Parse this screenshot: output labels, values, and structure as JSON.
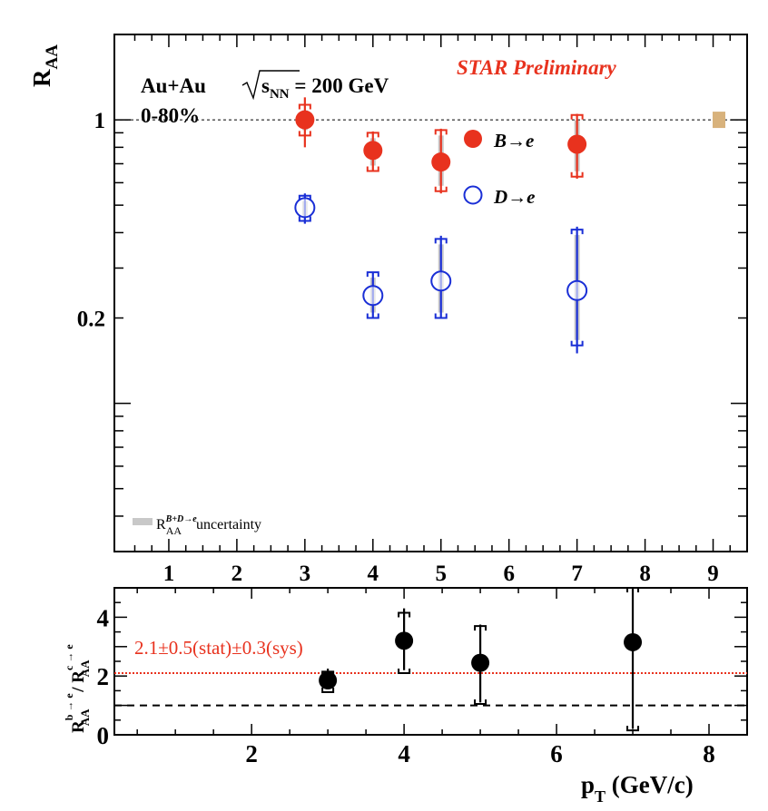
{
  "chart_data": [
    {
      "type": "scatter",
      "title": "",
      "ylabel_main": "R",
      "ylabel_sub": "AA",
      "xlim": [
        0.2,
        9.5
      ],
      "ylim": [
        0.03,
        2.0
      ],
      "y_scale": "log",
      "x_tick_labels": [
        "1",
        "2",
        "3",
        "4",
        "5",
        "6",
        "7",
        "8",
        "9"
      ],
      "y_tick_labels": [
        "1",
        "0.2"
      ],
      "reference_line": 1,
      "annotations": {
        "system": "Au+Au",
        "sqrt_s": "s",
        "sqrt_s_sub": "NN",
        "energy": " = 200 GeV",
        "centrality": "0-80%",
        "preliminary": "STAR Preliminary",
        "uncertainty_main": "R",
        "uncertainty_sub": "AA",
        "uncertainty_sup": "B+D→e",
        "uncertainty_text": " uncertainty"
      },
      "legend_placement": "top-center",
      "series": [
        {
          "name": "B→e",
          "marker": "filled-circle",
          "color": "#e8321e",
          "points": [
            {
              "x": 3.0,
              "y": 1.0,
              "stat_lo": 0.8,
              "stat_hi": 1.2,
              "sys_lo": 0.88,
              "sys_hi": 1.13
            },
            {
              "x": 4.0,
              "y": 0.78,
              "stat_lo": 0.66,
              "stat_hi": 0.91,
              "sys_lo": 0.66,
              "sys_hi": 0.9
            },
            {
              "x": 5.0,
              "y": 0.71,
              "stat_lo": 0.55,
              "stat_hi": 0.93,
              "sys_lo": 0.56,
              "sys_hi": 0.92
            },
            {
              "x": 7.0,
              "y": 0.82,
              "stat_lo": 0.62,
              "stat_hi": 1.05,
              "sys_lo": 0.63,
              "sys_hi": 1.04
            }
          ]
        },
        {
          "name": "D→e",
          "marker": "open-circle",
          "color": "#1a2fd6",
          "points": [
            {
              "x": 3.0,
              "y": 0.49,
              "stat_lo": 0.43,
              "stat_hi": 0.55,
              "sys_lo": 0.44,
              "sys_hi": 0.54
            },
            {
              "x": 4.0,
              "y": 0.24,
              "stat_lo": 0.2,
              "stat_hi": 0.29,
              "sys_lo": 0.2,
              "sys_hi": 0.29
            },
            {
              "x": 5.0,
              "y": 0.27,
              "stat_lo": 0.2,
              "stat_hi": 0.39,
              "sys_lo": 0.2,
              "sys_hi": 0.38
            },
            {
              "x": 7.0,
              "y": 0.25,
              "stat_lo": 0.15,
              "stat_hi": 0.42,
              "sys_lo": 0.16,
              "sys_hi": 0.41
            }
          ]
        }
      ]
    },
    {
      "type": "scatter",
      "xlabel_main": "p",
      "xlabel_sub": "T",
      "xlabel_unit": " (GeV/c)",
      "ylabel_num_main": "R",
      "ylabel_num_sub": "AA",
      "ylabel_num_sup": "b → e",
      "ylabel_den_main": "R",
      "ylabel_den_sub": "AA",
      "ylabel_den_sup": "c → e",
      "ylabel_sep": " / ",
      "xlim": [
        0.2,
        8.5
      ],
      "ylim": [
        0,
        5
      ],
      "x_tick_labels": [
        "2",
        "4",
        "6",
        "8"
      ],
      "y_tick_labels": [
        "0",
        "2",
        "4"
      ],
      "fit_value": 2.1,
      "fit_label": "2.1±0.5(stat)±0.3(sys)",
      "reference_line": 1,
      "series": [
        {
          "name": "",
          "marker": "filled-circle",
          "color": "#000000",
          "points": [
            {
              "x": 3.0,
              "y": 1.85,
              "stat_lo": 1.55,
              "stat_hi": 2.25,
              "sys_lo": 1.45,
              "sys_hi": 2.15
            },
            {
              "x": 4.0,
              "y": 3.2,
              "stat_lo": 2.2,
              "stat_hi": 4.3,
              "sys_lo": 2.1,
              "sys_hi": 4.15
            },
            {
              "x": 5.0,
              "y": 2.45,
              "stat_lo": 1.1,
              "stat_hi": 3.75,
              "sys_lo": 1.05,
              "sys_hi": 3.7
            },
            {
              "x": 7.0,
              "y": 3.15,
              "stat_lo": 0.2,
              "stat_hi": 5.0,
              "sys_lo": 0.15,
              "sys_hi": 5.0
            }
          ]
        }
      ]
    }
  ]
}
